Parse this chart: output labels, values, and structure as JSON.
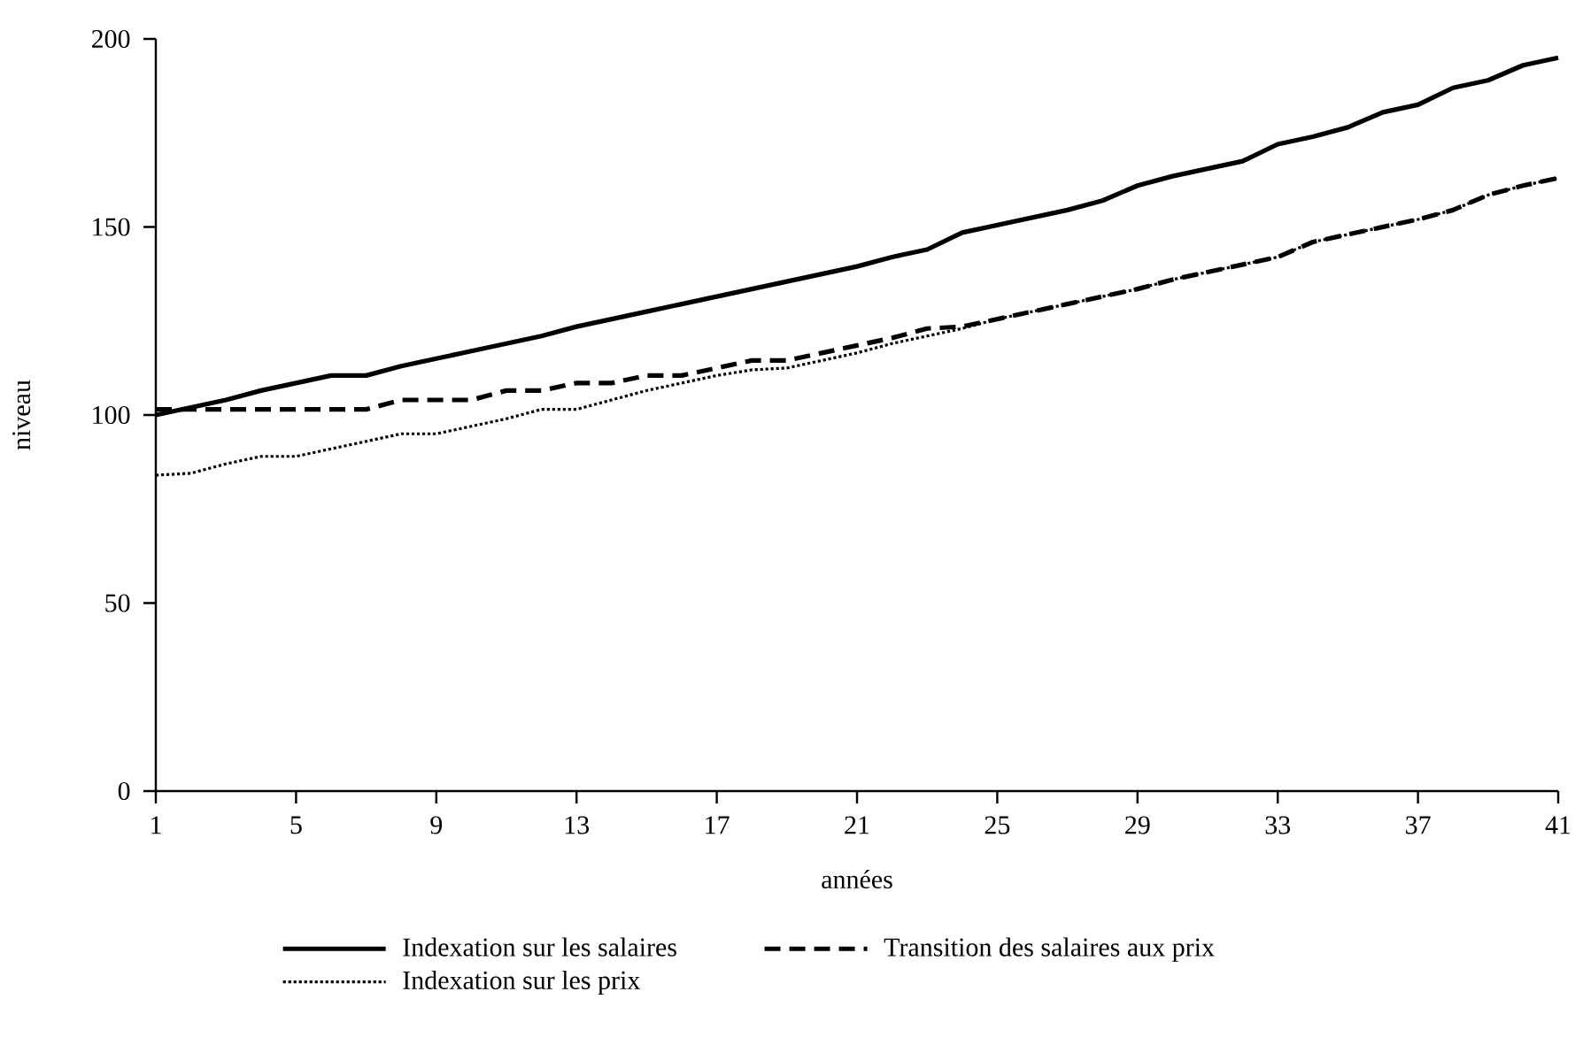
{
  "chart_data": {
    "type": "line",
    "xlabel": "années",
    "ylabel": "niveau",
    "x": [
      1,
      2,
      3,
      4,
      5,
      6,
      7,
      8,
      9,
      10,
      11,
      12,
      13,
      14,
      15,
      16,
      17,
      18,
      19,
      20,
      21,
      22,
      23,
      24,
      25,
      26,
      27,
      28,
      29,
      30,
      31,
      32,
      33,
      34,
      35,
      36,
      37,
      38,
      39,
      40,
      41
    ],
    "series": [
      {
        "name": "Indexation sur les salaires",
        "color": "#000000",
        "line_style": "solid",
        "values": [
          100,
          102,
          104,
          106.5,
          108.5,
          110.5,
          110.5,
          113,
          115,
          117,
          119,
          121,
          123.5,
          125.5,
          127.5,
          129.5,
          131.5,
          133.5,
          135.5,
          137.5,
          139.5,
          142,
          144,
          148.5,
          150.5,
          152.5,
          154.5,
          157,
          161,
          163.5,
          165.5,
          167.5,
          172,
          174,
          176.5,
          180.5,
          182.5,
          187,
          189,
          193,
          195
        ]
      },
      {
        "name": "Transition des salaires aux prix",
        "color": "#000000",
        "line_style": "dashed",
        "values": [
          101.5,
          101.5,
          101.5,
          101.5,
          101.5,
          101.5,
          101.5,
          104,
          104,
          104,
          106.5,
          106.5,
          108.5,
          108.5,
          110.5,
          110.5,
          112.5,
          114.5,
          114.5,
          116.5,
          118.5,
          120.5,
          123,
          123.5,
          125.5,
          127.5,
          129.5,
          131.5,
          133.5,
          136,
          138,
          140,
          142,
          146,
          148,
          150,
          152,
          154.5,
          158.5,
          161,
          163
        ]
      },
      {
        "name": "Indexation sur les prix",
        "color": "#000000",
        "line_style": "dotted",
        "values": [
          84,
          84.5,
          87,
          89,
          89,
          91,
          93,
          95,
          95,
          97,
          99,
          101.5,
          101.5,
          104,
          106.5,
          108.5,
          110.5,
          112,
          112.5,
          114.5,
          116.5,
          119,
          121,
          123,
          125.5,
          127.5,
          129.5,
          131.5,
          133.5,
          136,
          138,
          140,
          142,
          146,
          148,
          150,
          152,
          154.5,
          158.5,
          161,
          163
        ]
      }
    ],
    "xlim": [
      1,
      41
    ],
    "xticks": [
      1,
      5,
      9,
      13,
      17,
      21,
      25,
      29,
      33,
      37,
      41
    ],
    "ylim": [
      0,
      200
    ],
    "yticks": [
      0,
      50,
      100,
      150,
      200
    ],
    "grid": false,
    "legend": "bottom",
    "marker": "none"
  }
}
